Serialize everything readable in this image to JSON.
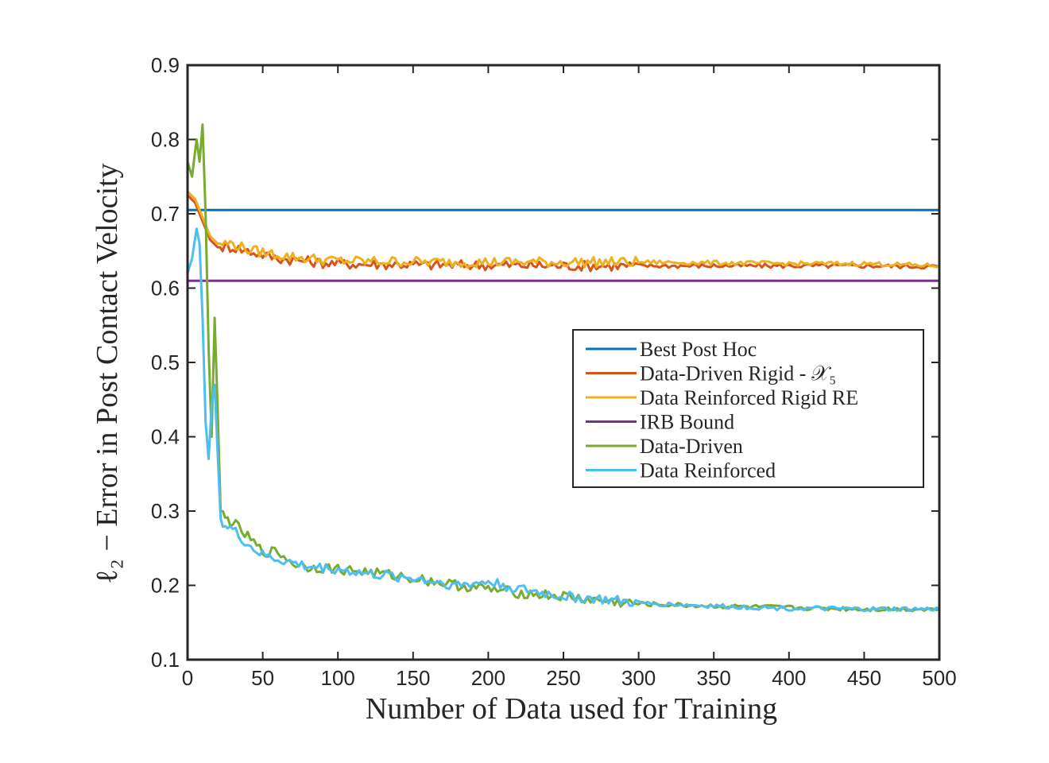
{
  "chart_data": {
    "type": "line",
    "xlabel": "Number of Data used for Training",
    "ylabel": "ℓ₂ − Error in Post Contact Velocity",
    "xlim": [
      0,
      500
    ],
    "ylim": [
      0.1,
      0.9
    ],
    "xticks": [
      0,
      50,
      100,
      150,
      200,
      250,
      300,
      350,
      400,
      450,
      500
    ],
    "yticks": [
      0.1,
      0.2,
      0.3,
      0.4,
      0.5,
      0.6,
      0.7,
      0.8,
      0.9
    ],
    "xtick_labels": [
      "0",
      "50",
      "100",
      "150",
      "200",
      "250",
      "300",
      "350",
      "400",
      "450",
      "500"
    ],
    "ytick_labels": [
      "0.1",
      "0.2",
      "0.3",
      "0.4",
      "0.5",
      "0.6",
      "0.7",
      "0.8",
      "0.9"
    ],
    "grid": false,
    "legend_position": "center-right",
    "series": [
      {
        "name": "Best Post Hoc",
        "color": "#0072BD",
        "x": [
          0,
          500
        ],
        "y": [
          0.705,
          0.705
        ]
      },
      {
        "name": "Data-Driven Rigid - 𝒳₅",
        "color": "#D95319",
        "x": [
          0,
          5,
          10,
          15,
          20,
          25,
          30,
          40,
          50,
          60,
          70,
          80,
          90,
          100,
          120,
          140,
          160,
          180,
          200,
          250,
          300,
          350,
          400,
          450,
          500
        ],
        "y": [
          0.725,
          0.715,
          0.69,
          0.665,
          0.655,
          0.655,
          0.655,
          0.65,
          0.645,
          0.64,
          0.638,
          0.636,
          0.634,
          0.633,
          0.632,
          0.632,
          0.631,
          0.631,
          0.631,
          0.63,
          0.63,
          0.63,
          0.63,
          0.63,
          0.629
        ]
      },
      {
        "name": "Data Reinforced Rigid RE",
        "color": "#EDB120",
        "x": [
          0,
          5,
          10,
          15,
          20,
          25,
          30,
          40,
          50,
          60,
          70,
          80,
          90,
          100,
          120,
          140,
          160,
          180,
          200,
          250,
          300,
          350,
          400,
          450,
          500
        ],
        "y": [
          0.73,
          0.72,
          0.695,
          0.67,
          0.66,
          0.66,
          0.66,
          0.652,
          0.648,
          0.645,
          0.642,
          0.64,
          0.638,
          0.637,
          0.636,
          0.636,
          0.635,
          0.635,
          0.635,
          0.635,
          0.635,
          0.634,
          0.633,
          0.633,
          0.63
        ]
      },
      {
        "name": "IRB Bound",
        "color": "#7E2F8E",
        "x": [
          0,
          500
        ],
        "y": [
          0.61,
          0.61
        ]
      },
      {
        "name": "Data-Driven",
        "color": "#77AC30",
        "x": [
          0,
          3,
          6,
          8,
          10,
          12,
          14,
          16,
          18,
          20,
          22,
          25,
          30,
          40,
          50,
          60,
          70,
          80,
          100,
          120,
          150,
          180,
          200,
          220,
          250,
          270,
          300,
          350,
          400,
          450,
          500
        ],
        "y": [
          0.77,
          0.75,
          0.8,
          0.77,
          0.82,
          0.7,
          0.52,
          0.4,
          0.56,
          0.44,
          0.3,
          0.29,
          0.285,
          0.265,
          0.245,
          0.245,
          0.23,
          0.225,
          0.222,
          0.218,
          0.21,
          0.2,
          0.195,
          0.19,
          0.185,
          0.18,
          0.175,
          0.172,
          0.17,
          0.168,
          0.168
        ]
      },
      {
        "name": "Data Reinforced",
        "color": "#4DBEEE",
        "x": [
          0,
          3,
          6,
          8,
          10,
          12,
          14,
          16,
          18,
          20,
          22,
          25,
          30,
          40,
          50,
          60,
          70,
          80,
          100,
          120,
          150,
          180,
          200,
          220,
          250,
          270,
          300,
          350,
          400,
          450,
          500
        ],
        "y": [
          0.62,
          0.64,
          0.68,
          0.66,
          0.56,
          0.42,
          0.37,
          0.44,
          0.47,
          0.38,
          0.29,
          0.28,
          0.275,
          0.255,
          0.24,
          0.235,
          0.23,
          0.225,
          0.222,
          0.215,
          0.21,
          0.2,
          0.205,
          0.195,
          0.185,
          0.182,
          0.176,
          0.172,
          0.169,
          0.168,
          0.168
        ]
      }
    ]
  }
}
